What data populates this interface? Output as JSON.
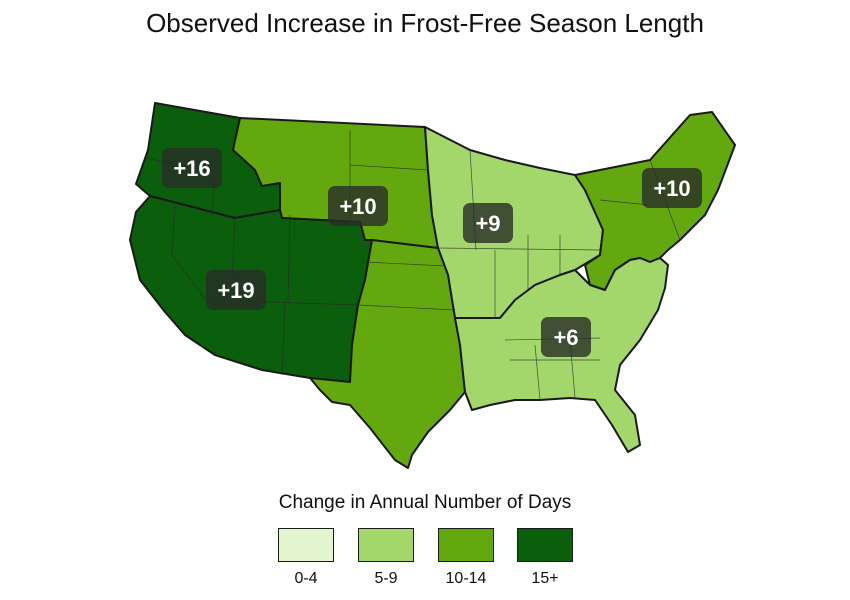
{
  "title": "Observed Increase in Frost-Free Season Length",
  "regions": [
    {
      "id": "northwest",
      "label": "+16",
      "color": "#0b5e0c"
    },
    {
      "id": "great-plains-north",
      "label": "+10",
      "color": "#64a80f"
    },
    {
      "id": "midwest",
      "label": "+9",
      "color": "#a3d66b"
    },
    {
      "id": "northeast",
      "label": "+10",
      "color": "#64a80f"
    },
    {
      "id": "southwest",
      "label": "+19",
      "color": "#0b5e0c"
    },
    {
      "id": "great-plains-south",
      "label": "",
      "color": "#64a80f"
    },
    {
      "id": "southeast",
      "label": "+6",
      "color": "#a3d66b"
    }
  ],
  "legend": {
    "title": "Change in Annual Number of Days",
    "items": [
      {
        "label": "0-4",
        "color": "#e3f5cf"
      },
      {
        "label": "5-9",
        "color": "#a3d66b"
      },
      {
        "label": "10-14",
        "color": "#64a80f"
      },
      {
        "label": "15+",
        "color": "#0b5e0c"
      }
    ]
  }
}
